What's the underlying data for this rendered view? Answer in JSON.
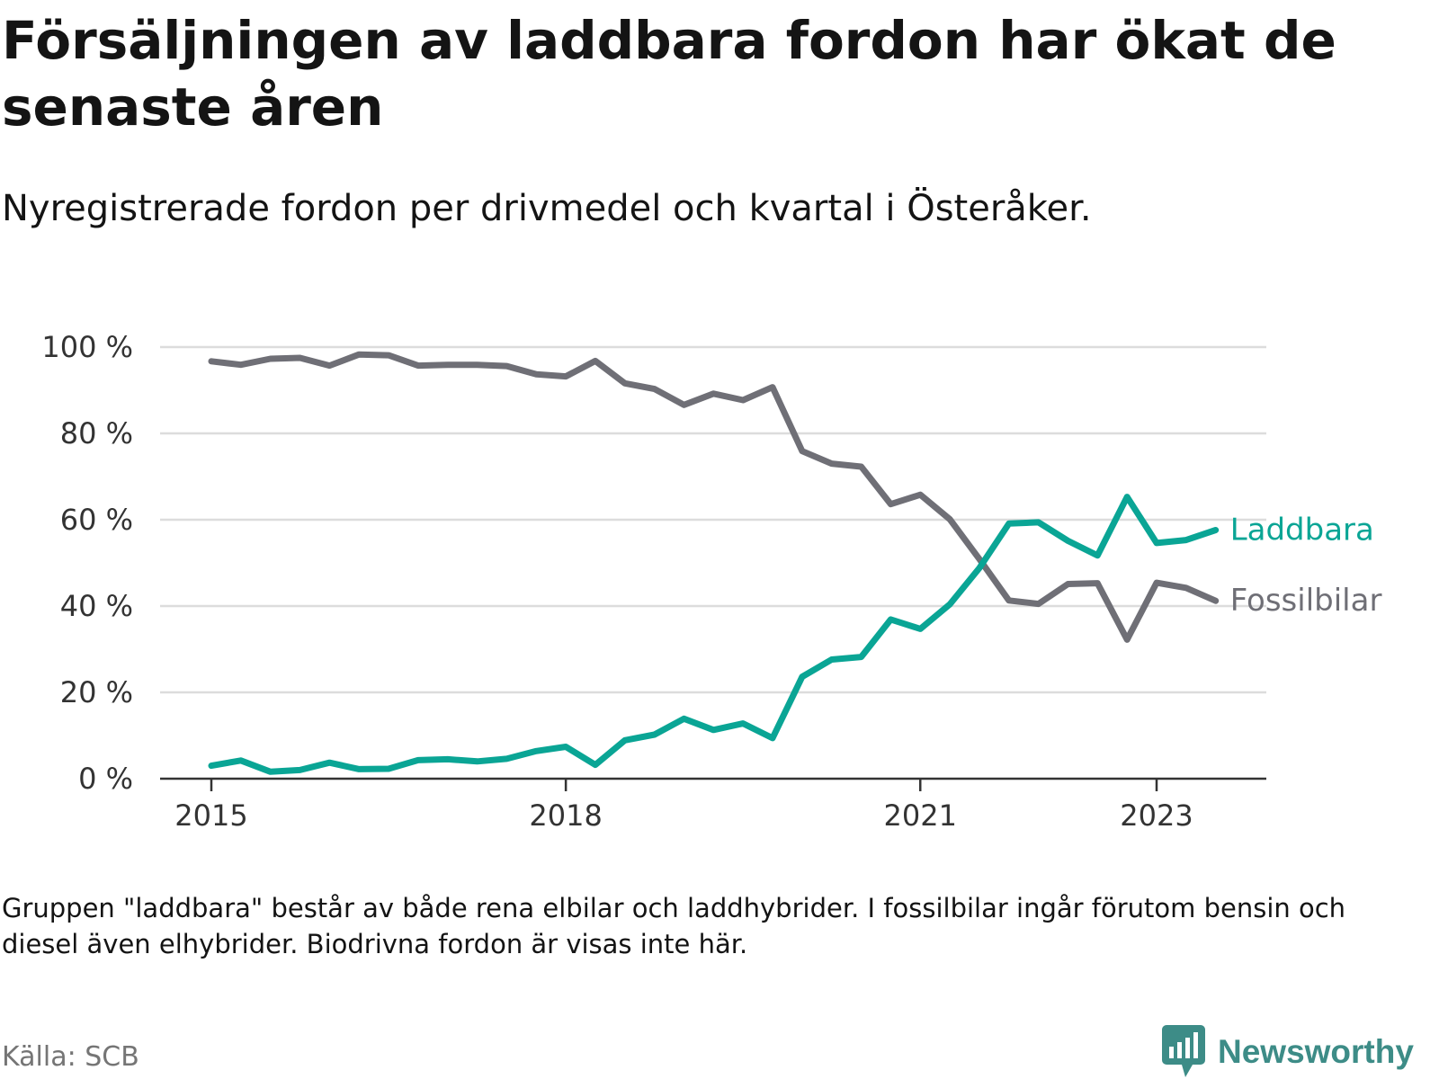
{
  "header": {
    "title": "Försäljningen av laddbara fordon har ökat de senaste åren",
    "subtitle": "Nyregistrerade fordon per drivmedel och kvartal i Österåker."
  },
  "footer": {
    "note": "Gruppen \"laddbara\" består av både rena elbilar och laddhybrider. I fossilbilar ingår förutom bensin och diesel även elhybrider. Biodrivna fordon är visas inte här.",
    "source": "Källa: SCB",
    "brand": "Newsworthy"
  },
  "colors": {
    "laddbara": "#0aa595",
    "fossil": "#6f6f76",
    "grid": "#dcdcdc",
    "axis": "#333333",
    "brand": "#3d8c87"
  },
  "chart_data": {
    "type": "line",
    "title": "Försäljningen av laddbara fordon har ökat de senaste åren",
    "subtitle": "Nyregistrerade fordon per drivmedel och kvartal i Österåker.",
    "xlabel": "",
    "ylabel": "",
    "x_start": 2015.0,
    "x_step": 0.25,
    "x_ticks": [
      2015,
      2018,
      2021,
      2023
    ],
    "x_tick_labels": [
      "2015",
      "2018",
      "2021",
      "2023"
    ],
    "ylim": [
      0,
      100
    ],
    "y_ticks": [
      0,
      20,
      40,
      60,
      80,
      100
    ],
    "y_tick_labels": [
      "0 %",
      "20 %",
      "40 %",
      "60 %",
      "80 %",
      "100 %"
    ],
    "grid": true,
    "legend": "direct labels at line ends",
    "series": [
      {
        "name": "Laddbara",
        "key": "laddbara",
        "values": [
          3,
          4.2,
          1.6,
          2,
          3.7,
          2.2,
          2.3,
          4.3,
          4.5,
          4,
          4.6,
          6.4,
          7.4,
          3.2,
          8.9,
          10.2,
          13.9,
          11.3,
          12.8,
          9.4,
          23.6,
          27.6,
          28.2,
          36.9,
          34.7,
          40.4,
          48.8,
          59.1,
          59.4,
          55.1,
          51.7,
          65.3,
          54.6,
          55.3,
          57.6
        ]
      },
      {
        "name": "Fossilbilar",
        "key": "fossil",
        "values": [
          96.7,
          95.9,
          97.3,
          97.5,
          95.7,
          98.3,
          98.1,
          95.7,
          95.9,
          95.9,
          95.6,
          93.7,
          93.2,
          96.8,
          91.6,
          90.3,
          86.6,
          89.2,
          87.7,
          90.7,
          75.9,
          73,
          72.3,
          63.6,
          65.8,
          60.1,
          50.9,
          41.3,
          40.5,
          45.1,
          45.3,
          32.2,
          45.4,
          44.2,
          41.2
        ]
      }
    ]
  }
}
